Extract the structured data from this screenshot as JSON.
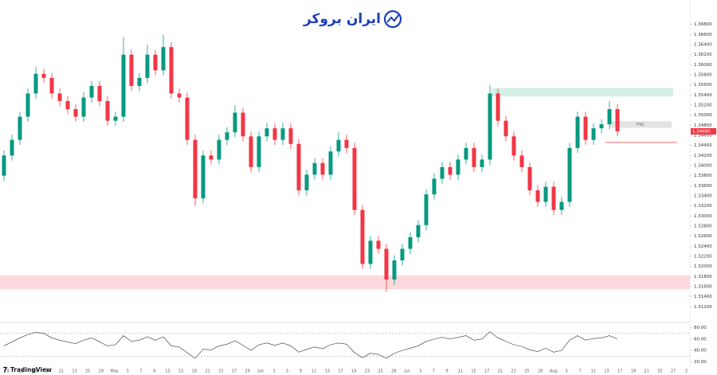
{
  "header": {
    "logo": "ایران بروکر"
  },
  "footer": {
    "brand": "TradingView"
  },
  "chart_data": {
    "type": "candlestick",
    "x_labels": [
      "9",
      "13",
      "15",
      "17",
      "21",
      "23",
      "25",
      "29",
      "May",
      "5",
      "7",
      "9",
      "13",
      "15",
      "19",
      "21",
      "23",
      "27",
      "29",
      "Jun",
      "3",
      "5",
      "9",
      "11",
      "13",
      "17",
      "19",
      "23",
      "25",
      "29",
      "Jul",
      "3",
      "7",
      "9",
      "11",
      "15",
      "17",
      "21",
      "23",
      "25",
      "29",
      "Aug",
      "5",
      "7",
      "11",
      "13",
      "17",
      "19",
      "21",
      "25",
      "27",
      "2"
    ],
    "open": [
      1.338,
      1.342,
      1.3451,
      1.3497,
      1.3543,
      1.3582,
      1.3574,
      1.3543,
      1.3528,
      1.3512,
      1.3497,
      1.3535,
      1.3558,
      1.3528,
      1.3489,
      1.3497,
      1.362,
      1.3558,
      1.3574,
      1.362,
      1.3589,
      1.3635,
      1.3543,
      1.3535,
      1.3451,
      1.3335,
      1.342,
      1.3412,
      1.3451,
      1.3466,
      1.3505,
      1.3458,
      1.3397,
      1.3458,
      1.3474,
      1.3451,
      1.3474,
      1.3443,
      1.3351,
      1.3382,
      1.3405,
      1.3382,
      1.3428,
      1.3451,
      1.3435,
      1.3312,
      1.3205,
      1.3251,
      1.3235,
      1.3174,
      1.3212,
      1.3235,
      1.3258,
      1.3282,
      1.3343,
      1.3374,
      1.3397,
      1.3382,
      1.3412,
      1.3435,
      1.3397,
      1.3412,
      1.3543,
      1.3489,
      1.3458,
      1.342,
      1.3397,
      1.3351,
      1.3328,
      1.3358,
      1.3312,
      1.3328,
      1.3435,
      1.3497,
      1.3451,
      1.3474,
      1.3482,
      1.3512
    ],
    "high": [
      1.343,
      1.3461,
      1.3507,
      1.3553,
      1.3595,
      1.3592,
      1.3584,
      1.3553,
      1.3538,
      1.3522,
      1.3545,
      1.3568,
      1.3568,
      1.3538,
      1.3507,
      1.3655,
      1.363,
      1.3584,
      1.364,
      1.363,
      1.366,
      1.3645,
      1.3553,
      1.3545,
      1.3461,
      1.343,
      1.343,
      1.3461,
      1.3476,
      1.352,
      1.3515,
      1.3468,
      1.3468,
      1.3484,
      1.3484,
      1.3484,
      1.3484,
      1.3453,
      1.3392,
      1.3415,
      1.3415,
      1.3438,
      1.3466,
      1.3461,
      1.3445,
      1.3322,
      1.3261,
      1.3261,
      1.3245,
      1.3222,
      1.3245,
      1.3268,
      1.3292,
      1.3353,
      1.3384,
      1.3407,
      1.3407,
      1.3422,
      1.3445,
      1.3445,
      1.3422,
      1.356,
      1.3553,
      1.3499,
      1.3468,
      1.343,
      1.3407,
      1.3361,
      1.3368,
      1.3368,
      1.3338,
      1.3445,
      1.3507,
      1.3507,
      1.3484,
      1.3492,
      1.3528,
      1.3522
    ],
    "low": [
      1.337,
      1.341,
      1.3441,
      1.3487,
      1.3533,
      1.3564,
      1.3533,
      1.3518,
      1.3502,
      1.3487,
      1.3487,
      1.3525,
      1.3518,
      1.3479,
      1.3479,
      1.3487,
      1.3548,
      1.3548,
      1.3564,
      1.3579,
      1.3579,
      1.3533,
      1.3525,
      1.3441,
      1.332,
      1.3325,
      1.3402,
      1.3402,
      1.3441,
      1.3456,
      1.3448,
      1.3387,
      1.3387,
      1.3448,
      1.3441,
      1.3441,
      1.3433,
      1.3341,
      1.3341,
      1.3372,
      1.3372,
      1.3372,
      1.3418,
      1.3425,
      1.3302,
      1.3195,
      1.3195,
      1.3225,
      1.315,
      1.3164,
      1.3202,
      1.3225,
      1.3248,
      1.3272,
      1.3333,
      1.3364,
      1.3372,
      1.3372,
      1.3402,
      1.3387,
      1.3387,
      1.3402,
      1.3479,
      1.3448,
      1.341,
      1.3387,
      1.3341,
      1.3318,
      1.3318,
      1.3302,
      1.3302,
      1.3318,
      1.3425,
      1.3441,
      1.3441,
      1.3464,
      1.3472,
      1.3458
    ],
    "close": [
      1.342,
      1.3451,
      1.3497,
      1.3543,
      1.3582,
      1.3574,
      1.3543,
      1.3528,
      1.3512,
      1.3497,
      1.3535,
      1.3558,
      1.3528,
      1.3489,
      1.3497,
      1.362,
      1.3558,
      1.3574,
      1.362,
      1.3589,
      1.3635,
      1.3543,
      1.3535,
      1.3451,
      1.3335,
      1.342,
      1.3412,
      1.3451,
      1.3466,
      1.3505,
      1.3458,
      1.3397,
      1.3458,
      1.3474,
      1.3451,
      1.3474,
      1.3443,
      1.3351,
      1.3382,
      1.3405,
      1.3382,
      1.3428,
      1.3451,
      1.3435,
      1.3312,
      1.3205,
      1.3251,
      1.3235,
      1.3174,
      1.3212,
      1.3235,
      1.3258,
      1.3282,
      1.3343,
      1.3374,
      1.3397,
      1.3382,
      1.3412,
      1.3435,
      1.3397,
      1.3412,
      1.3543,
      1.3489,
      1.3458,
      1.342,
      1.3397,
      1.3351,
      1.3328,
      1.3358,
      1.3312,
      1.3328,
      1.3435,
      1.3497,
      1.3451,
      1.3474,
      1.3482,
      1.3512,
      1.3468
    ],
    "up_color": "#089981",
    "down_color": "#f23645",
    "ylim": [
      1.31,
      1.37
    ],
    "yticks": [
      {
        "value": 1.312,
        "label": "1.31200"
      },
      {
        "value": 1.314,
        "label": "1.31400"
      },
      {
        "value": 1.316,
        "label": "1.31600"
      },
      {
        "value": 1.318,
        "label": "1.31800"
      },
      {
        "value": 1.32,
        "label": "1.32000"
      },
      {
        "value": 1.322,
        "label": "1.32200"
      },
      {
        "value": 1.324,
        "label": "1.32400"
      },
      {
        "value": 1.326,
        "label": "1.32600"
      },
      {
        "value": 1.328,
        "label": "1.32800"
      },
      {
        "value": 1.33,
        "label": "1.33000"
      },
      {
        "value": 1.332,
        "label": "1.33200"
      },
      {
        "value": 1.334,
        "label": "1.33400"
      },
      {
        "value": 1.336,
        "label": "1.33600"
      },
      {
        "value": 1.338,
        "label": "1.33800"
      },
      {
        "value": 1.34,
        "label": "1.34000"
      },
      {
        "value": 1.342,
        "label": "1.34200"
      },
      {
        "value": 1.344,
        "label": "1.34400"
      },
      {
        "value": 1.346,
        "label": "1.34600"
      },
      {
        "value": 1.348,
        "label": "1.34800"
      },
      {
        "value": 1.35,
        "label": "1.35000"
      },
      {
        "value": 1.352,
        "label": "1.35200"
      },
      {
        "value": 1.354,
        "label": "1.35400"
      },
      {
        "value": 1.356,
        "label": "1.35600"
      },
      {
        "value": 1.358,
        "label": "1.35800"
      },
      {
        "value": 1.36,
        "label": "1.36000"
      },
      {
        "value": 1.362,
        "label": "1.36200"
      },
      {
        "value": 1.364,
        "label": "1.36400"
      },
      {
        "value": 1.366,
        "label": "1.36600"
      },
      {
        "value": 1.368,
        "label": "1.36800"
      }
    ],
    "last_price": {
      "value": 1.3468,
      "label": "1.34680"
    },
    "zones": [
      {
        "top": 1.3554,
        "bottom": 1.3537,
        "color": "#d4efe6"
      },
      {
        "top": 1.3182,
        "bottom": 1.3155,
        "color": "#fbd9dc"
      },
      {
        "top": 1.3488,
        "bottom": 1.3475,
        "color": "#e3e3e3",
        "label": "FVC"
      }
    ],
    "lines": [
      {
        "value": 1.3446,
        "color": "#f23645"
      }
    ],
    "rsi": {
      "values": [
        48,
        55,
        62,
        68,
        72,
        70,
        62,
        58,
        55,
        52,
        58,
        62,
        55,
        48,
        50,
        66,
        56,
        58,
        64,
        58,
        64,
        48,
        46,
        36,
        26,
        42,
        41,
        48,
        51,
        57,
        49,
        40,
        50,
        53,
        49,
        53,
        48,
        37,
        42,
        46,
        43,
        50,
        53,
        51,
        36,
        27,
        35,
        33,
        26,
        35,
        40,
        44,
        48,
        56,
        60,
        63,
        60,
        63,
        66,
        58,
        60,
        73,
        62,
        56,
        50,
        47,
        41,
        38,
        44,
        37,
        40,
        58,
        66,
        58,
        61,
        62,
        66,
        60
      ],
      "ylim": [
        15,
        85
      ],
      "yticks": [
        {
          "value": 80,
          "label": "80.00"
        },
        {
          "value": 60,
          "label": "60.00"
        },
        {
          "value": 40,
          "label": "40.00"
        },
        {
          "value": 20,
          "label": "20.00"
        }
      ],
      "levels": [
        70,
        30
      ]
    }
  }
}
